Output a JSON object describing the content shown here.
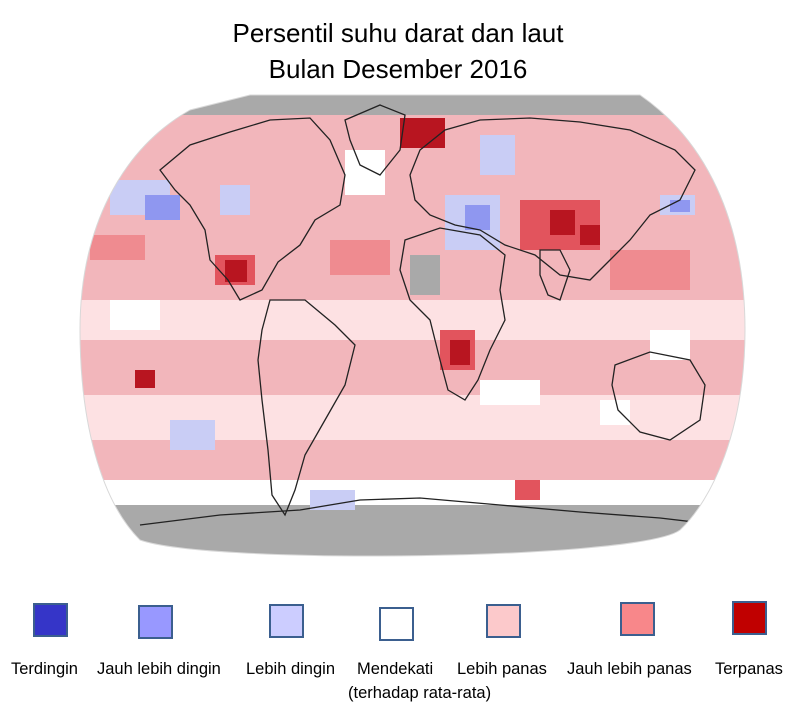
{
  "title_line1": "Persentil  suhu darat dan laut",
  "title_line2": "Bulan  Desember 2016",
  "colors": {
    "ocean_base": "#f2b6bb",
    "pale": "#fde1e3",
    "warm": "#ef8b90",
    "much_warm": "#e2545d",
    "record_warm": "#b81520",
    "cool": "#c9cdf5",
    "much_cool": "#8f97f0",
    "no_data": "#a9a9a9",
    "near": "#ffffff"
  },
  "legend": [
    {
      "label": "Terdingin",
      "color": "#3535c8"
    },
    {
      "label": "Jauh lebih  dingin",
      "color": "#9898ff"
    },
    {
      "label": "Lebih dingin",
      "color": "#cccdff"
    },
    {
      "label": "Mendekati",
      "sub": "(terhadap  rata-rata)",
      "color": "#ffffff"
    },
    {
      "label": "Lebih panas",
      "color": "#fcc9cb"
    },
    {
      "label": "Jauh lebih panas",
      "color": "#f8878a"
    },
    {
      "label": "Terpanas",
      "color": "#c00000"
    }
  ]
}
